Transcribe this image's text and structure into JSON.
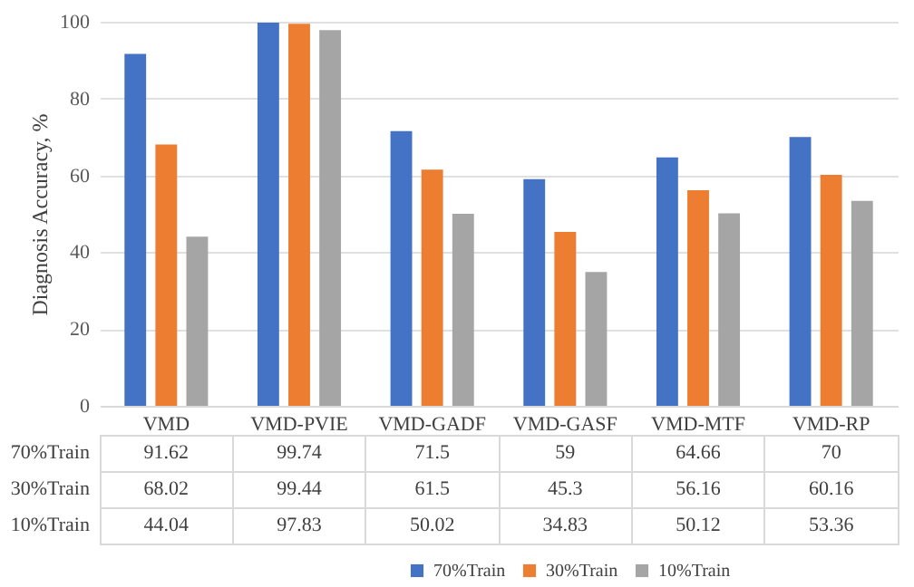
{
  "chart_data": {
    "type": "bar",
    "ylabel": "Diagnosis Accuracy, %",
    "categories": [
      "VMD",
      "VMD-PVIE",
      "VMD-GADF",
      "VMD-GASF",
      "VMD-MTF",
      "VMD-RP"
    ],
    "series": [
      {
        "name": "70%Train",
        "color": "#4472c4",
        "values": [
          91.62,
          99.74,
          71.5,
          59,
          64.66,
          70
        ]
      },
      {
        "name": "30%Train",
        "color": "#ed7d31",
        "values": [
          68.02,
          99.44,
          61.5,
          45.3,
          56.16,
          60.16
        ]
      },
      {
        "name": "10%Train",
        "color": "#a5a5a5",
        "values": [
          44.04,
          97.83,
          50.02,
          34.83,
          50.12,
          53.36
        ]
      }
    ],
    "ylim": [
      0,
      100
    ],
    "yticks": [
      0,
      20,
      40,
      60,
      80,
      100
    ],
    "grid": "y",
    "legend": "bottom",
    "data_labels": true
  }
}
